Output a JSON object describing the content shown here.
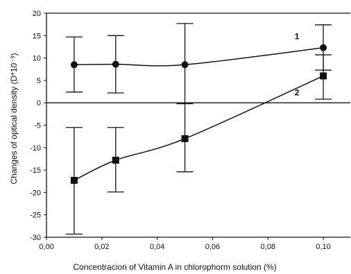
{
  "chart_data": {
    "type": "scatter",
    "xlabel": "Concentracion of Vitamin A in chlorophorm solution (%)",
    "ylabel": "Changes of optical density (D*10⁻³)",
    "xlim": [
      0.0,
      0.11
    ],
    "ylim": [
      -30,
      20
    ],
    "x_ticks": [
      0.0,
      0.02,
      0.04,
      0.06,
      0.08,
      0.1
    ],
    "x_tick_labels": [
      "0,00",
      "0,02",
      "0,04",
      "0,06",
      "0,08",
      "0,10"
    ],
    "y_ticks": [
      -30,
      -25,
      -20,
      -15,
      -10,
      -5,
      0,
      5,
      10,
      15,
      20
    ],
    "y_tick_labels": [
      "-30",
      "-25",
      "-20",
      "-15",
      "-10",
      "-5",
      "0",
      "5",
      "10",
      "15",
      "20"
    ],
    "zero_line": true,
    "grid": false,
    "series": [
      {
        "name": "1",
        "marker": "circle",
        "color": "#111111",
        "x": [
          0.01,
          0.025,
          0.05,
          0.1
        ],
        "y": [
          8.5,
          8.6,
          8.5,
          12.3
        ],
        "err_low": [
          2.4,
          2.2,
          -0.2,
          7.3
        ],
        "err_high": [
          14.7,
          15.0,
          17.7,
          17.4
        ]
      },
      {
        "name": "2",
        "marker": "square",
        "color": "#111111",
        "x": [
          0.01,
          0.025,
          0.05,
          0.1
        ],
        "y": [
          -17.3,
          -12.8,
          -8.0,
          6.0
        ],
        "err_low": [
          -29.3,
          -19.9,
          -15.4,
          0.8
        ],
        "err_high": [
          -5.5,
          -5.5,
          -0.2,
          10.7
        ]
      }
    ]
  }
}
